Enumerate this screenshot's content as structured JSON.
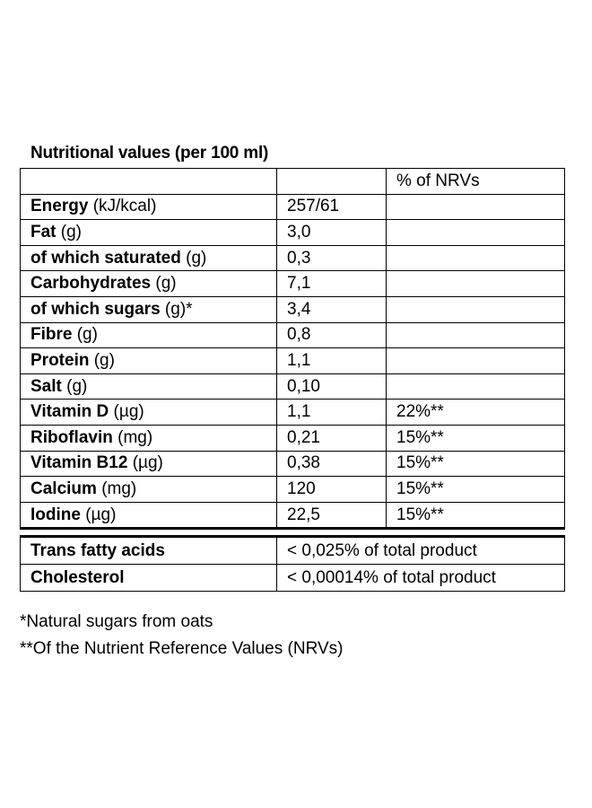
{
  "title": "Nutritional values (per 100 ml)",
  "header": {
    "name": "",
    "value": "",
    "nrv": "% of NRVs"
  },
  "rows": [
    {
      "name": "Energy",
      "unit": " (kJ/kcal)",
      "value": "257/61",
      "nrv": ""
    },
    {
      "name": "Fat",
      "unit": " (g)",
      "value": "3,0",
      "nrv": ""
    },
    {
      "name": "of which saturated",
      "unit": " (g)",
      "value": "0,3",
      "nrv": ""
    },
    {
      "name": "Carbohydrates",
      "unit": " (g)",
      "value": "7,1",
      "nrv": ""
    },
    {
      "name": "of which sugars",
      "unit": " (g)*",
      "value": "3,4",
      "nrv": ""
    },
    {
      "name": "Fibre",
      "unit": " (g)",
      "value": "0,8",
      "nrv": ""
    },
    {
      "name": "Protein",
      "unit": " (g)",
      "value": "1,1",
      "nrv": ""
    },
    {
      "name": "Salt",
      "unit": " (g)",
      "value": "0,10",
      "nrv": ""
    },
    {
      "name": "Vitamin D",
      "unit": " (µg)",
      "value": "1,1",
      "nrv": "22%**"
    },
    {
      "name": "Riboflavin",
      "unit": " (mg)",
      "value": "0,21",
      "nrv": "15%**"
    },
    {
      "name": "Vitamin B12",
      "unit": " (µg)",
      "value": "0,38",
      "nrv": "15%**"
    },
    {
      "name": "Calcium",
      "unit": " (mg)",
      "value": "120",
      "nrv": "15%**"
    },
    {
      "name": "Iodine",
      "unit": " (µg)",
      "value": "22,5",
      "nrv": "15%**"
    }
  ],
  "extra_rows": [
    {
      "name": "Trans fatty acids",
      "value": "< 0,025% of total product"
    },
    {
      "name": "Cholesterol",
      "value": "< 0,00014% of total product"
    }
  ],
  "footnotes": {
    "sugars": "*Natural sugars from oats",
    "nrv": "**Of the Nutrient Reference Values (NRVs)"
  }
}
